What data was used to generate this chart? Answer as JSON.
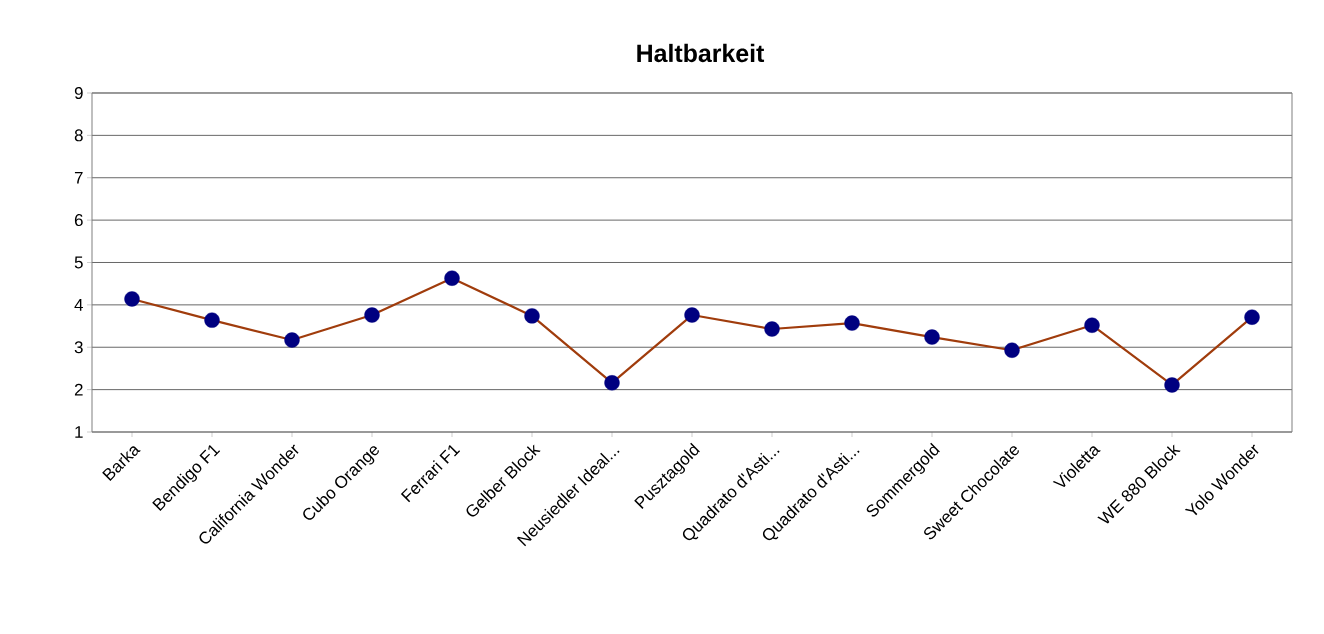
{
  "chart_data": {
    "type": "line",
    "title": "Haltbarkeit",
    "categories": [
      "Barka",
      "Bendigo F1",
      "California Wonder",
      "Cubo Orange",
      "Ferrari F1",
      "Gelber Block",
      "Neusiedler Ideal...",
      "Pusztagold",
      "Quadrato d'Asti...",
      "Quadrato d'Asti...",
      "Sommergold",
      "Sweet Chocolate",
      "Violetta",
      "WE 880 Block",
      "Yolo Wonder"
    ],
    "series": [
      {
        "color": "#a03c0c",
        "colors": [
          "#000080",
          "#000080",
          "#000080",
          "#000080",
          "#000080",
          "#000080",
          "#000080",
          "#000080",
          "#000080",
          "#000080",
          "#000080",
          "#000080",
          "#000080",
          "#000080",
          "#000080"
        ],
        "values": [
          4.14,
          3.64,
          3.17,
          3.76,
          4.63,
          3.74,
          2.16,
          3.76,
          3.43,
          3.57,
          3.24,
          2.93,
          3.52,
          2.11,
          3.71
        ]
      }
    ],
    "ylim": [
      1,
      9
    ],
    "yticks": [
      1,
      2,
      3,
      4,
      5,
      6,
      7,
      8,
      9
    ],
    "grid": "y",
    "marker": "circle",
    "line_style": "solid"
  }
}
